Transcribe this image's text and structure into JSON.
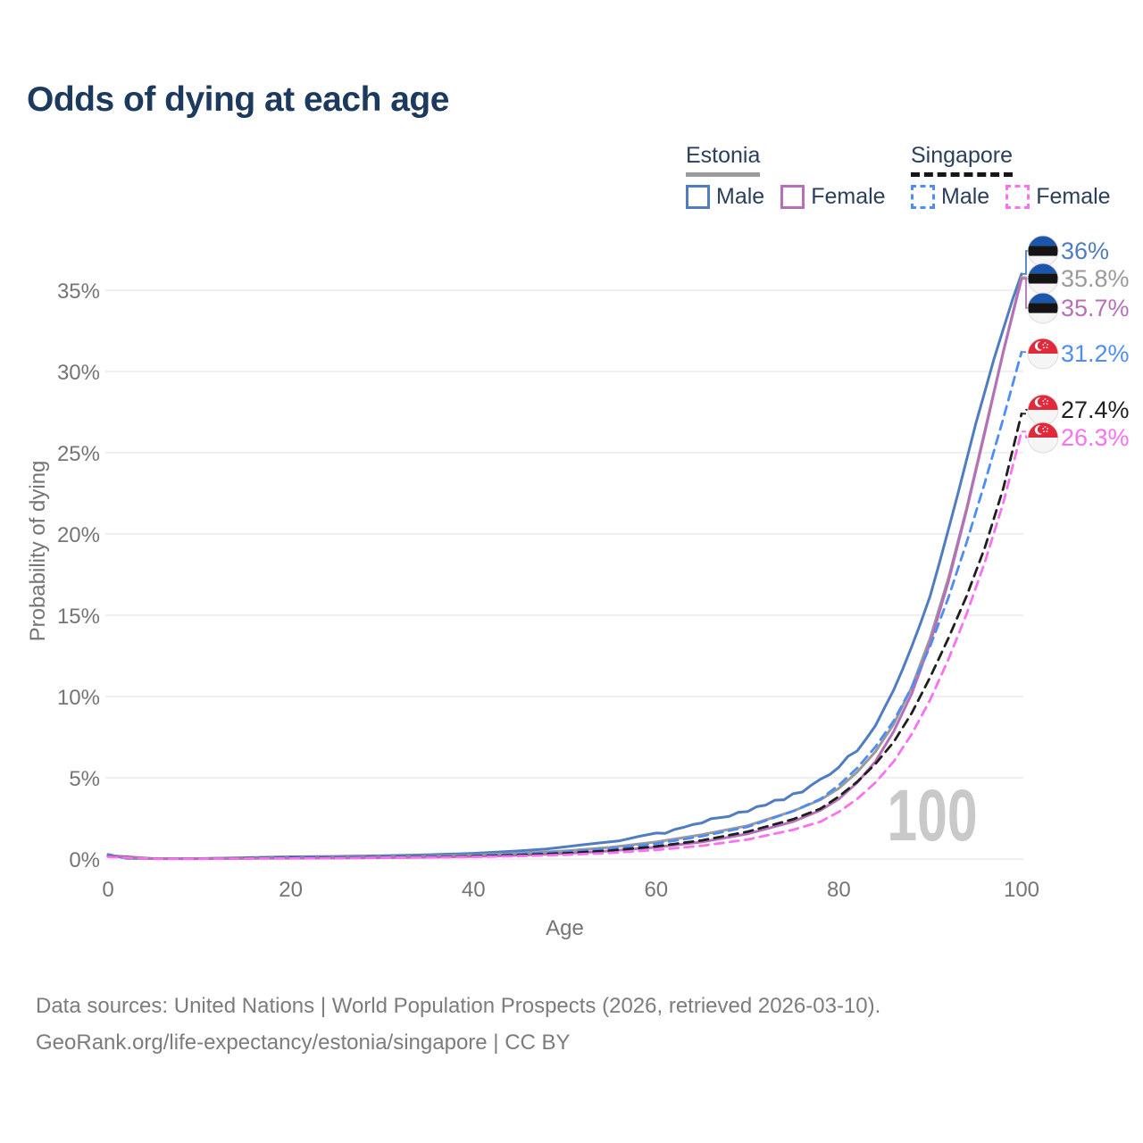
{
  "title": "Odds of dying at each age",
  "legend": {
    "estonia": {
      "title": "Estonia",
      "male": "Male",
      "female": "Female"
    },
    "singapore": {
      "title": "Singapore",
      "male": "Male",
      "female": "Female"
    }
  },
  "axes": {
    "x": {
      "label": "Age",
      "ticks": [
        0,
        20,
        40,
        60,
        80,
        100
      ]
    },
    "y": {
      "label": "Probability of dying",
      "tick_labels": [
        "0%",
        "5%",
        "10%",
        "15%",
        "20%",
        "25%",
        "30%",
        "35%"
      ],
      "tick_values": [
        0,
        5,
        10,
        15,
        20,
        25,
        30,
        35
      ]
    }
  },
  "watermark": "100",
  "footer": {
    "line1": "Data sources: United Nations | World Population Prospects (2026, retrieved 2026-03-10).",
    "line2": "GeoRank.org/life-expectancy/estonia/singapore | CC BY"
  },
  "colors": {
    "estonia_male": "#4f7dc0",
    "estonia_both": "#9a9a9a",
    "estonia_female": "#b670b8",
    "singapore_male": "#4f8df5",
    "singapore_both": "#1f1f1f",
    "singapore_female": "#fb71ef",
    "grid": "#eaeaea",
    "axis_text": "#757575"
  },
  "chart_data": {
    "type": "line",
    "title": "Odds of dying at each age",
    "xlabel": "Age",
    "ylabel": "Probability of dying",
    "x_range": [
      0,
      100
    ],
    "y_range_pct": [
      0,
      38
    ],
    "grid": "horizontal-only",
    "legend_position": "top-right",
    "series": [
      {
        "id": "estonia-male",
        "name": "Estonia Male",
        "country": "Estonia",
        "sex": "male",
        "color": "#4f7dc0",
        "dash": "solid",
        "flag": "estonia",
        "end_label": "36%",
        "end_value": 36.0,
        "points": [
          [
            0,
            0.28
          ],
          [
            2,
            0.05
          ],
          [
            5,
            0.03
          ],
          [
            10,
            0.03
          ],
          [
            15,
            0.08
          ],
          [
            20,
            0.14
          ],
          [
            25,
            0.16
          ],
          [
            30,
            0.2
          ],
          [
            35,
            0.26
          ],
          [
            40,
            0.35
          ],
          [
            45,
            0.5
          ],
          [
            48,
            0.62
          ],
          [
            50,
            0.75
          ],
          [
            52,
            0.88
          ],
          [
            54,
            1.0
          ],
          [
            56,
            1.12
          ],
          [
            58,
            1.38
          ],
          [
            60,
            1.6
          ],
          [
            61,
            1.58
          ],
          [
            62,
            1.82
          ],
          [
            63,
            1.95
          ],
          [
            64,
            2.12
          ],
          [
            65,
            2.22
          ],
          [
            66,
            2.48
          ],
          [
            67,
            2.55
          ],
          [
            68,
            2.62
          ],
          [
            69,
            2.88
          ],
          [
            70,
            2.92
          ],
          [
            71,
            3.22
          ],
          [
            72,
            3.32
          ],
          [
            73,
            3.62
          ],
          [
            74,
            3.65
          ],
          [
            75,
            4.02
          ],
          [
            76,
            4.12
          ],
          [
            77,
            4.55
          ],
          [
            78,
            4.92
          ],
          [
            79,
            5.2
          ],
          [
            80,
            5.65
          ],
          [
            81,
            6.32
          ],
          [
            82,
            6.65
          ],
          [
            83,
            7.4
          ],
          [
            84,
            8.2
          ],
          [
            85,
            9.3
          ],
          [
            86,
            10.4
          ],
          [
            87,
            11.7
          ],
          [
            88,
            13.1
          ],
          [
            89,
            14.6
          ],
          [
            90,
            16.2
          ],
          [
            91,
            18.2
          ],
          [
            92,
            20.3
          ],
          [
            93,
            22.4
          ],
          [
            94,
            24.6
          ],
          [
            95,
            26.8
          ],
          [
            96,
            28.8
          ],
          [
            97,
            30.8
          ],
          [
            98,
            32.6
          ],
          [
            99,
            34.4
          ],
          [
            100,
            36.0
          ]
        ]
      },
      {
        "id": "estonia-both",
        "name": "Estonia Both sexes",
        "country": "Estonia",
        "sex": "both",
        "color": "#9a9a9a",
        "dash": "solid",
        "flag": "estonia",
        "end_label": "35.8%",
        "end_value": 35.8,
        "points": [
          [
            0,
            0.22
          ],
          [
            5,
            0.02
          ],
          [
            10,
            0.02
          ],
          [
            15,
            0.05
          ],
          [
            20,
            0.08
          ],
          [
            25,
            0.1
          ],
          [
            30,
            0.13
          ],
          [
            35,
            0.17
          ],
          [
            40,
            0.24
          ],
          [
            45,
            0.34
          ],
          [
            50,
            0.5
          ],
          [
            55,
            0.72
          ],
          [
            60,
            1.05
          ],
          [
            65,
            1.5
          ],
          [
            70,
            2.05
          ],
          [
            75,
            2.95
          ],
          [
            78,
            3.65
          ],
          [
            80,
            4.35
          ],
          [
            82,
            5.35
          ],
          [
            84,
            6.6
          ],
          [
            86,
            8.3
          ],
          [
            88,
            10.6
          ],
          [
            90,
            13.6
          ],
          [
            92,
            17.3
          ],
          [
            94,
            21.6
          ],
          [
            96,
            26.4
          ],
          [
            98,
            31.2
          ],
          [
            100,
            35.8
          ]
        ]
      },
      {
        "id": "estonia-female",
        "name": "Estonia Female",
        "country": "Estonia",
        "sex": "female",
        "color": "#b670b8",
        "dash": "solid",
        "flag": "estonia",
        "end_label": "35.7%",
        "end_value": 35.7,
        "points": [
          [
            0,
            0.2
          ],
          [
            5,
            0.02
          ],
          [
            10,
            0.02
          ],
          [
            15,
            0.04
          ],
          [
            20,
            0.05
          ],
          [
            25,
            0.06
          ],
          [
            30,
            0.08
          ],
          [
            35,
            0.11
          ],
          [
            40,
            0.16
          ],
          [
            45,
            0.23
          ],
          [
            50,
            0.34
          ],
          [
            55,
            0.5
          ],
          [
            60,
            0.73
          ],
          [
            65,
            1.05
          ],
          [
            70,
            1.55
          ],
          [
            75,
            2.3
          ],
          [
            78,
            3.0
          ],
          [
            80,
            3.7
          ],
          [
            82,
            4.7
          ],
          [
            84,
            6.0
          ],
          [
            86,
            7.85
          ],
          [
            88,
            10.2
          ],
          [
            90,
            13.3
          ],
          [
            92,
            17.1
          ],
          [
            94,
            21.5
          ],
          [
            96,
            26.3
          ],
          [
            98,
            31.2
          ],
          [
            100,
            35.7
          ]
        ]
      },
      {
        "id": "singapore-male",
        "name": "Singapore Male",
        "country": "Singapore",
        "sex": "male",
        "color": "#4f8df5",
        "dash": "dashed",
        "flag": "singapore",
        "end_label": "31.2%",
        "end_value": 31.2,
        "points": [
          [
            0,
            0.18
          ],
          [
            5,
            0.02
          ],
          [
            10,
            0.02
          ],
          [
            15,
            0.05
          ],
          [
            20,
            0.09
          ],
          [
            25,
            0.1
          ],
          [
            30,
            0.12
          ],
          [
            35,
            0.15
          ],
          [
            40,
            0.21
          ],
          [
            45,
            0.3
          ],
          [
            50,
            0.44
          ],
          [
            55,
            0.65
          ],
          [
            60,
            0.95
          ],
          [
            65,
            1.4
          ],
          [
            70,
            1.98
          ],
          [
            75,
            2.95
          ],
          [
            78,
            3.7
          ],
          [
            80,
            4.55
          ],
          [
            82,
            5.6
          ],
          [
            84,
            6.9
          ],
          [
            86,
            8.5
          ],
          [
            88,
            10.6
          ],
          [
            90,
            13.1
          ],
          [
            92,
            16.1
          ],
          [
            94,
            19.5
          ],
          [
            96,
            23.2
          ],
          [
            98,
            27.1
          ],
          [
            100,
            31.2
          ]
        ]
      },
      {
        "id": "singapore-both",
        "name": "Singapore Both sexes",
        "country": "Singapore",
        "sex": "both",
        "color": "#1f1f1f",
        "dash": "dashed",
        "flag": "singapore",
        "end_label": "27.4%",
        "end_value": 27.4,
        "points": [
          [
            0,
            0.16
          ],
          [
            5,
            0.02
          ],
          [
            10,
            0.02
          ],
          [
            15,
            0.04
          ],
          [
            20,
            0.07
          ],
          [
            25,
            0.08
          ],
          [
            30,
            0.1
          ],
          [
            35,
            0.12
          ],
          [
            40,
            0.17
          ],
          [
            45,
            0.24
          ],
          [
            50,
            0.35
          ],
          [
            55,
            0.52
          ],
          [
            60,
            0.78
          ],
          [
            65,
            1.15
          ],
          [
            70,
            1.68
          ],
          [
            75,
            2.45
          ],
          [
            78,
            3.1
          ],
          [
            80,
            3.85
          ],
          [
            82,
            4.75
          ],
          [
            84,
            5.85
          ],
          [
            86,
            7.2
          ],
          [
            88,
            9.0
          ],
          [
            90,
            11.2
          ],
          [
            92,
            13.6
          ],
          [
            94,
            16.2
          ],
          [
            96,
            19.2
          ],
          [
            98,
            22.8
          ],
          [
            100,
            27.4
          ]
        ]
      },
      {
        "id": "singapore-female",
        "name": "Singapore Female",
        "country": "Singapore",
        "sex": "female",
        "color": "#fb71ef",
        "dash": "dashed",
        "flag": "singapore",
        "end_label": "26.3%",
        "end_value": 26.3,
        "points": [
          [
            0,
            0.14
          ],
          [
            5,
            0.02
          ],
          [
            10,
            0.02
          ],
          [
            15,
            0.03
          ],
          [
            20,
            0.05
          ],
          [
            25,
            0.06
          ],
          [
            30,
            0.08
          ],
          [
            35,
            0.1
          ],
          [
            40,
            0.13
          ],
          [
            45,
            0.18
          ],
          [
            50,
            0.26
          ],
          [
            55,
            0.38
          ],
          [
            60,
            0.56
          ],
          [
            65,
            0.82
          ],
          [
            70,
            1.2
          ],
          [
            75,
            1.8
          ],
          [
            78,
            2.3
          ],
          [
            80,
            2.9
          ],
          [
            82,
            3.7
          ],
          [
            84,
            4.7
          ],
          [
            86,
            6.0
          ],
          [
            88,
            7.7
          ],
          [
            90,
            9.8
          ],
          [
            92,
            12.3
          ],
          [
            94,
            15.1
          ],
          [
            96,
            18.3
          ],
          [
            98,
            21.9
          ],
          [
            100,
            26.3
          ]
        ]
      }
    ]
  }
}
